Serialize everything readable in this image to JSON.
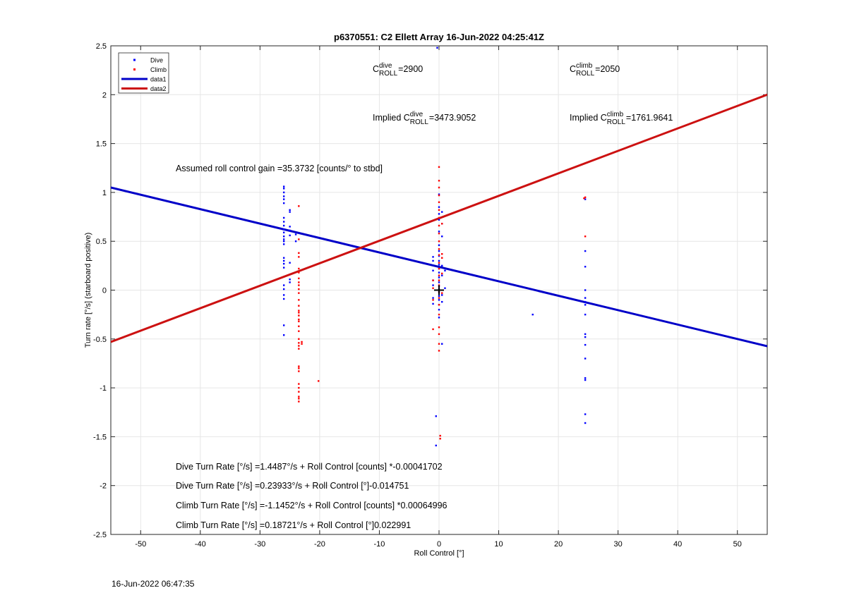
{
  "chart_data": {
    "type": "scatter",
    "title": "p6370551: C2 Ellett Array 16-Jun-2022 04:25:41Z",
    "xlabel": "Roll Control [°]",
    "ylabel": "Turn rate [°/s] (starboard positive)",
    "xlim": [
      -55,
      55
    ],
    "ylim": [
      -2.5,
      2.5
    ],
    "xticks": [
      -50,
      -40,
      -30,
      -20,
      -10,
      0,
      10,
      20,
      30,
      40,
      50
    ],
    "yticks": [
      -2.5,
      -2,
      -1.5,
      -1,
      -0.5,
      0,
      0.5,
      1,
      1.5,
      2,
      2.5
    ],
    "grid": true,
    "legend_position": "top-left",
    "colors": {
      "dive": "#0000ff",
      "climb": "#ff0000",
      "data1": "#0000c8",
      "data2": "#cc1111"
    },
    "series": [
      {
        "name": "Dive",
        "kind": "points",
        "points": [
          [
            -26,
            1.06
          ],
          [
            -26,
            1.04
          ],
          [
            -26,
            1.0
          ],
          [
            -26,
            0.96
          ],
          [
            -26,
            0.93
          ],
          [
            -26,
            0.89
          ],
          [
            -26,
            0.74
          ],
          [
            -26,
            0.7
          ],
          [
            -26,
            0.66
          ],
          [
            -26,
            0.62
          ],
          [
            -26,
            0.59
          ],
          [
            -26,
            0.55
          ],
          [
            -26,
            0.52
          ],
          [
            -26,
            0.5
          ],
          [
            -26,
            0.47
          ],
          [
            -26,
            0.33
          ],
          [
            -26,
            0.3
          ],
          [
            -26,
            0.27
          ],
          [
            -26,
            0.23
          ],
          [
            -26,
            0.05
          ],
          [
            -26,
            0.01
          ],
          [
            -26,
            -0.05
          ],
          [
            -26,
            -0.09
          ],
          [
            -26,
            -0.36
          ],
          [
            -26,
            -0.46
          ],
          [
            -25,
            0.82
          ],
          [
            -25,
            0.8
          ],
          [
            -25,
            0.65
          ],
          [
            -25,
            0.61
          ],
          [
            -25,
            0.56
          ],
          [
            -25,
            0.28
          ],
          [
            -25,
            0.11
          ],
          [
            -25,
            0.08
          ],
          [
            -24,
            0.57
          ],
          [
            -24,
            0.5
          ],
          [
            -1,
            0.34
          ],
          [
            -1,
            0.3
          ],
          [
            -1,
            0.2
          ],
          [
            -1,
            0.1
          ],
          [
            -1,
            0.05
          ],
          [
            -1,
            -0.08
          ],
          [
            -1,
            -0.14
          ],
          [
            -0.5,
            -1.29
          ],
          [
            -0.5,
            -1.59
          ],
          [
            -0.3,
            2.48
          ],
          [
            0,
            0.98
          ],
          [
            0,
            0.85
          ],
          [
            0,
            0.78
          ],
          [
            0,
            0.72
          ],
          [
            0,
            0.6
          ],
          [
            0,
            0.46
          ],
          [
            0,
            0.4
          ],
          [
            0,
            0.35
          ],
          [
            0,
            0.3
          ],
          [
            0,
            0.26
          ],
          [
            0,
            0.22
          ],
          [
            0,
            0.18
          ],
          [
            0,
            0.13
          ],
          [
            0,
            0.08
          ],
          [
            0,
            0.04
          ],
          [
            0,
            0.01
          ],
          [
            0,
            -0.02
          ],
          [
            0,
            -0.06
          ],
          [
            0,
            -0.1
          ],
          [
            0,
            -0.15
          ],
          [
            0,
            -0.2
          ],
          [
            0,
            -0.28
          ],
          [
            0.5,
            0.8
          ],
          [
            0.5,
            0.68
          ],
          [
            0.5,
            0.55
          ],
          [
            0.5,
            0.25
          ],
          [
            0.5,
            0.15
          ],
          [
            0.5,
            -0.05
          ],
          [
            0.5,
            -0.12
          ],
          [
            0.5,
            -0.55
          ],
          [
            1,
            0.2
          ],
          [
            1,
            0.02
          ],
          [
            15.7,
            -0.25
          ],
          [
            24.5,
            0.93
          ],
          [
            24.5,
            0.4
          ],
          [
            24.5,
            0.24
          ],
          [
            24.5,
            0.0
          ],
          [
            24.5,
            -0.08
          ],
          [
            24.5,
            -0.12
          ],
          [
            24.5,
            -0.15
          ],
          [
            24.5,
            -0.25
          ],
          [
            24.5,
            -0.45
          ],
          [
            24.5,
            -0.48
          ],
          [
            24.5,
            -0.56
          ],
          [
            24.5,
            -0.7
          ],
          [
            24.5,
            -0.9
          ],
          [
            24.5,
            -0.92
          ],
          [
            24.5,
            -1.27
          ],
          [
            24.5,
            -1.36
          ]
        ]
      },
      {
        "name": "Climb",
        "kind": "points",
        "points": [
          [
            -23.5,
            0.86
          ],
          [
            -23.5,
            0.52
          ],
          [
            -23.5,
            0.38
          ],
          [
            -23.5,
            0.34
          ],
          [
            -23.5,
            0.22
          ],
          [
            -23.5,
            0.18
          ],
          [
            -23.5,
            0.12
          ],
          [
            -23.5,
            0.08
          ],
          [
            -23.5,
            0.05
          ],
          [
            -23.5,
            0.01
          ],
          [
            -23.5,
            -0.03
          ],
          [
            -23.5,
            -0.1
          ],
          [
            -23.5,
            -0.16
          ],
          [
            -23.5,
            -0.21
          ],
          [
            -23.5,
            -0.23
          ],
          [
            -23.5,
            -0.26
          ],
          [
            -23.5,
            -0.3
          ],
          [
            -23.5,
            -0.32
          ],
          [
            -23.5,
            -0.37
          ],
          [
            -23.5,
            -0.42
          ],
          [
            -23.5,
            -0.5
          ],
          [
            -23.5,
            -0.54
          ],
          [
            -23.5,
            -0.57
          ],
          [
            -23.5,
            -0.6
          ],
          [
            -23.5,
            -0.78
          ],
          [
            -23.5,
            -0.8
          ],
          [
            -23.5,
            -0.83
          ],
          [
            -23.5,
            -0.96
          ],
          [
            -23.5,
            -1.0
          ],
          [
            -23.5,
            -1.04
          ],
          [
            -23.5,
            -1.09
          ],
          [
            -23.5,
            -1.11
          ],
          [
            -23.5,
            -1.14
          ],
          [
            -23,
            -0.55
          ],
          [
            -23,
            -0.53
          ],
          [
            -20.2,
            -0.93
          ],
          [
            -1,
            0.1
          ],
          [
            -1,
            0.02
          ],
          [
            -1,
            -0.1
          ],
          [
            -1,
            -0.4
          ],
          [
            0,
            1.26
          ],
          [
            0,
            1.12
          ],
          [
            0,
            1.05
          ],
          [
            0,
            0.97
          ],
          [
            0,
            0.9
          ],
          [
            0,
            0.82
          ],
          [
            0,
            0.74
          ],
          [
            0,
            0.66
          ],
          [
            0,
            0.58
          ],
          [
            0,
            0.5
          ],
          [
            0,
            0.42
          ],
          [
            0,
            0.36
          ],
          [
            0,
            0.28
          ],
          [
            0,
            0.22
          ],
          [
            0,
            0.15
          ],
          [
            0,
            0.1
          ],
          [
            0,
            0.05
          ],
          [
            0,
            -0.02
          ],
          [
            0,
            -0.08
          ],
          [
            0,
            -0.15
          ],
          [
            0,
            -0.25
          ],
          [
            0,
            -0.38
          ],
          [
            0,
            -0.45
          ],
          [
            0,
            -0.55
          ],
          [
            0,
            -0.62
          ],
          [
            0.2,
            -1.49
          ],
          [
            0.2,
            -1.52
          ],
          [
            0.5,
            0.68
          ],
          [
            0.5,
            0.37
          ],
          [
            0.5,
            0.33
          ],
          [
            0.5,
            0.17
          ],
          [
            0.5,
            -0.03
          ],
          [
            24.3,
            0.94
          ],
          [
            24.5,
            0.95
          ],
          [
            24.5,
            0.55
          ]
        ]
      },
      {
        "name": "data1",
        "kind": "line",
        "x": [
          -55,
          55
        ],
        "y": [
          1.05,
          -0.574
        ]
      },
      {
        "name": "data2",
        "kind": "line",
        "x": [
          -55,
          55
        ],
        "y": [
          -0.53,
          2.0
        ]
      }
    ],
    "marker": {
      "x": 0,
      "y": 0,
      "symbol": "plus"
    },
    "annotations": {
      "c_roll_dive": {
        "prefix": "C",
        "sup": "dive",
        "sub": "ROLL",
        "value": "=2900"
      },
      "c_roll_climb": {
        "prefix": "C",
        "sup": "climb",
        "sub": "ROLL",
        "value": "=2050"
      },
      "implied_dive": {
        "prefix": "Implied C",
        "sup": "dive",
        "sub": "ROLL",
        "value": "=3473.9052"
      },
      "implied_climb": {
        "prefix": "Implied C",
        "sup": "climb",
        "sub": "ROLL",
        "value": "=1761.9641"
      },
      "gain": "Assumed roll control gain =35.3732 [counts/° to stbd]",
      "eq1": "Dive Turn Rate [°/s] =1.4487°/s + Roll Control [counts] *-0.00041702",
      "eq2": "Dive Turn Rate [°/s] =0.23933°/s + Roll Control [°]-0.014751",
      "eq3": "Climb Turn Rate [°/s] =-1.1452°/s + Roll Control [counts] *0.00064996",
      "eq4": "Climb Turn Rate [°/s] =0.18721°/s + Roll Control [°]0.022991"
    }
  },
  "footer": {
    "timestamp": "16-Jun-2022 06:47:35"
  }
}
